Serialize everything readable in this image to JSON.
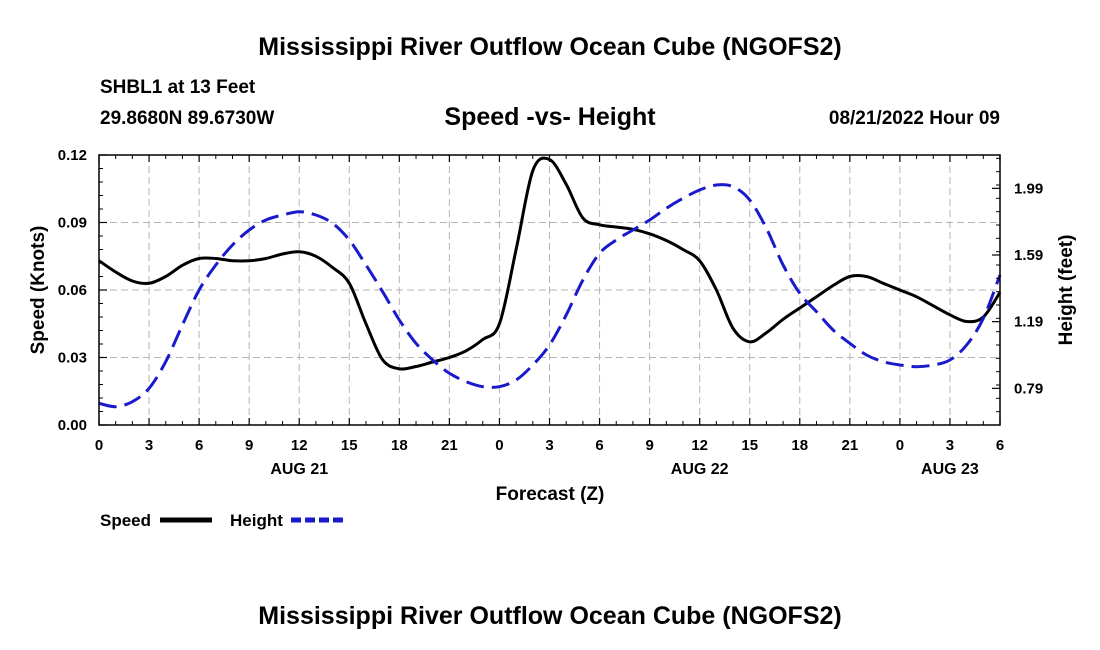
{
  "chart_data": {
    "type": "line",
    "title": "Mississippi River Outflow Ocean Cube (NGOFS2)",
    "subtitle": "Speed -vs- Height",
    "station": "SHBL1 at 13 Feet",
    "location": "29.8680N  89.6730W",
    "datetime": "08/21/2022 Hour 09",
    "footer_title": "Mississippi River Outflow Ocean Cube (NGOFS2)",
    "xlabel": "Forecast (Z)",
    "ylabel_left": "Speed (Knots)",
    "ylabel_right": "Height (feet)",
    "x_range_hours": [
      0,
      54
    ],
    "x_ticks": [
      {
        "h": 0,
        "label": "0"
      },
      {
        "h": 3,
        "label": "3"
      },
      {
        "h": 6,
        "label": "6"
      },
      {
        "h": 9,
        "label": "9"
      },
      {
        "h": 12,
        "label": "12"
      },
      {
        "h": 15,
        "label": "15"
      },
      {
        "h": 18,
        "label": "18"
      },
      {
        "h": 21,
        "label": "21"
      },
      {
        "h": 24,
        "label": "0"
      },
      {
        "h": 27,
        "label": "3"
      },
      {
        "h": 30,
        "label": "6"
      },
      {
        "h": 33,
        "label": "9"
      },
      {
        "h": 36,
        "label": "12"
      },
      {
        "h": 39,
        "label": "15"
      },
      {
        "h": 42,
        "label": "18"
      },
      {
        "h": 45,
        "label": "21"
      },
      {
        "h": 48,
        "label": "0"
      },
      {
        "h": 51,
        "label": "3"
      },
      {
        "h": 54,
        "label": "6"
      }
    ],
    "date_labels": [
      {
        "h": 12,
        "label": "AUG 21"
      },
      {
        "h": 36,
        "label": "AUG 22"
      },
      {
        "h": 51,
        "label": "AUG 23"
      }
    ],
    "y_left": {
      "range": [
        0,
        0.12
      ],
      "ticks": [
        0,
        0.03,
        0.06,
        0.09,
        0.12
      ],
      "labels": [
        "0.00",
        "0.03",
        "0.06",
        "0.09",
        "0.12"
      ]
    },
    "y_right": {
      "range": [
        0.57,
        2.19
      ],
      "ticks": [
        0.79,
        1.19,
        1.59,
        1.99
      ],
      "labels": [
        "0.79",
        "1.19",
        "1.59",
        "1.99"
      ]
    },
    "grid": true,
    "legend": [
      {
        "name": "Speed",
        "color": "#000000",
        "dash": "solid"
      },
      {
        "name": "Height",
        "color": "#1a1acc",
        "dash": "dashed"
      }
    ],
    "series": [
      {
        "name": "Speed",
        "axis": "left",
        "color": "#000000",
        "x": [
          0,
          1,
          2,
          3,
          4,
          5,
          6,
          7,
          8,
          9,
          10,
          11,
          12,
          13,
          14,
          15,
          16,
          17,
          18,
          19,
          20,
          21,
          22,
          23,
          24,
          25,
          26,
          27,
          28,
          29,
          30,
          31,
          32,
          33,
          34,
          35,
          36,
          37,
          38,
          39,
          40,
          41,
          42,
          43,
          44,
          45,
          46,
          47,
          48,
          49,
          50,
          51,
          52,
          53,
          54
        ],
        "values": [
          0.073,
          0.068,
          0.064,
          0.063,
          0.066,
          0.071,
          0.074,
          0.074,
          0.073,
          0.073,
          0.074,
          0.076,
          0.077,
          0.075,
          0.07,
          0.063,
          0.045,
          0.029,
          0.025,
          0.026,
          0.028,
          0.03,
          0.033,
          0.038,
          0.045,
          0.078,
          0.113,
          0.118,
          0.107,
          0.092,
          0.089,
          0.088,
          0.087,
          0.085,
          0.082,
          0.078,
          0.073,
          0.06,
          0.043,
          0.037,
          0.041,
          0.047,
          0.052,
          0.057,
          0.062,
          0.066,
          0.066,
          0.063,
          0.06,
          0.057,
          0.053,
          0.049,
          0.046,
          0.048,
          0.059
        ]
      },
      {
        "name": "Height",
        "axis": "right",
        "color": "#1a1acc",
        "x": [
          0,
          1,
          2,
          3,
          4,
          5,
          6,
          7,
          8,
          9,
          10,
          11,
          12,
          13,
          14,
          15,
          16,
          17,
          18,
          19,
          20,
          21,
          22,
          23,
          24,
          25,
          26,
          27,
          28,
          29,
          30,
          31,
          32,
          33,
          34,
          35,
          36,
          37,
          38,
          39,
          40,
          41,
          42,
          43,
          44,
          45,
          46,
          47,
          48,
          49,
          50,
          51,
          52,
          53,
          54
        ],
        "values": [
          0.7,
          0.68,
          0.71,
          0.79,
          0.95,
          1.17,
          1.38,
          1.53,
          1.65,
          1.74,
          1.8,
          1.83,
          1.85,
          1.83,
          1.78,
          1.68,
          1.53,
          1.37,
          1.2,
          1.06,
          0.96,
          0.88,
          0.83,
          0.8,
          0.8,
          0.84,
          0.93,
          1.05,
          1.23,
          1.44,
          1.6,
          1.68,
          1.74,
          1.8,
          1.87,
          1.93,
          1.98,
          2.01,
          2.0,
          1.92,
          1.75,
          1.53,
          1.36,
          1.25,
          1.14,
          1.06,
          0.99,
          0.95,
          0.93,
          0.92,
          0.93,
          0.96,
          1.05,
          1.21,
          1.47
        ]
      }
    ]
  }
}
